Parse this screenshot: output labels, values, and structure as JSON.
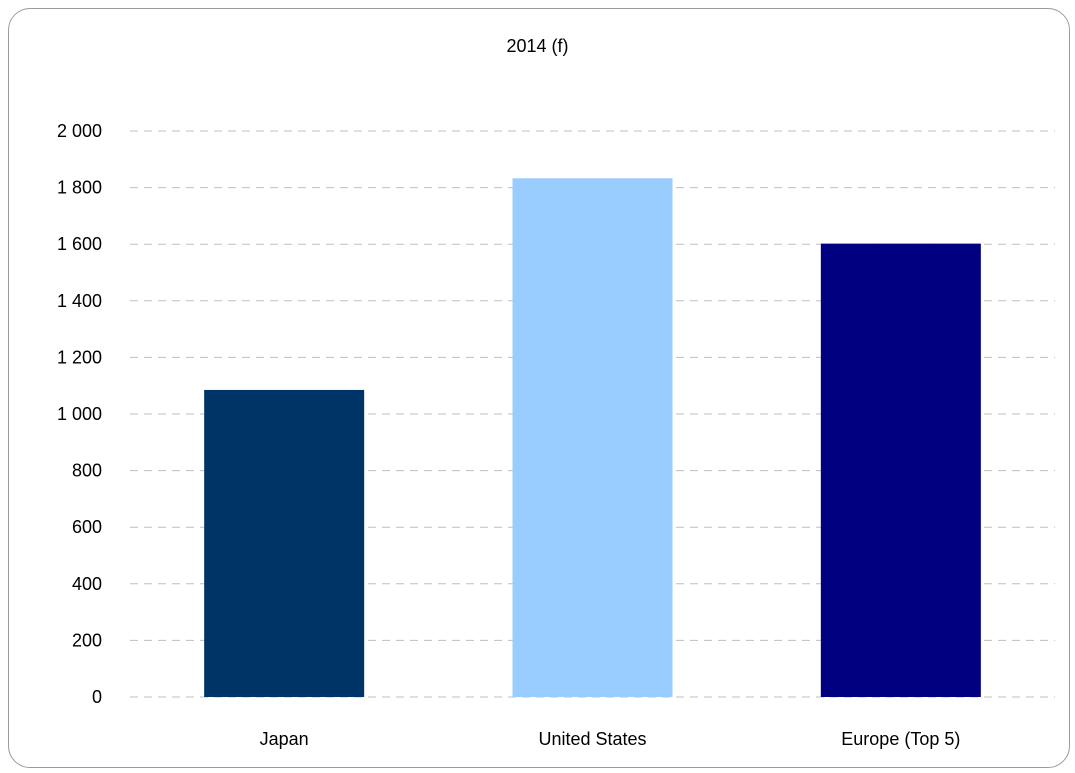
{
  "chart_data": {
    "type": "bar",
    "title": "2014 (f)",
    "categories": [
      "Japan",
      "United States",
      "Europe (Top 5)"
    ],
    "values": [
      1085,
      1833,
      1602
    ],
    "colors": [
      "#003366",
      "#99ccff",
      "#000080"
    ],
    "ylim": [
      0,
      2000
    ],
    "yticks": [
      0,
      200,
      400,
      600,
      800,
      1000,
      1200,
      1400,
      1600,
      1800,
      2000
    ],
    "ytick_labels": [
      "0",
      "200",
      "400",
      "600",
      "800",
      "1 000",
      "1 200",
      "1 400",
      "1 600",
      "1 800",
      "2 000"
    ],
    "grid": true,
    "grid_style": "dashed",
    "legend": "none",
    "xlabel": "",
    "ylabel": ""
  }
}
